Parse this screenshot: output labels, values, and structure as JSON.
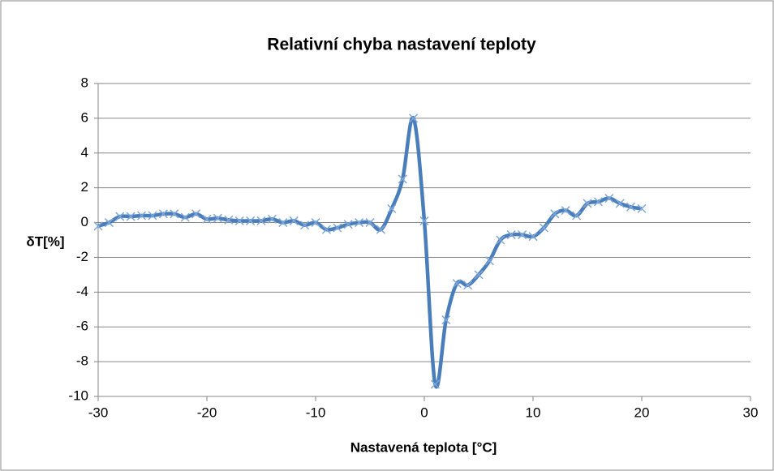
{
  "chart_data": {
    "type": "line",
    "title": "Relativní chyba nastavení teploty",
    "xlabel": "Nastavená teplota [°C]",
    "ylabel": "δT[%]",
    "x": [
      -30,
      -29,
      -28,
      -27,
      -26,
      -25,
      -24,
      -23,
      -22,
      -21,
      -20,
      -19,
      -18,
      -17,
      -16,
      -15,
      -14,
      -13,
      -12,
      -11,
      -10,
      -9,
      -8,
      -7,
      -6,
      -5,
      -4,
      -3,
      -2,
      -1,
      0,
      1,
      2,
      3,
      4,
      5,
      6,
      7,
      8,
      9,
      10,
      11,
      12,
      13,
      14,
      15,
      16,
      17,
      18,
      19,
      20
    ],
    "series": [
      {
        "color": "#4a7ebb",
        "values": [
          -0.2,
          0.0,
          0.35,
          0.35,
          0.4,
          0.4,
          0.5,
          0.5,
          0.3,
          0.5,
          0.2,
          0.25,
          0.15,
          0.1,
          0.1,
          0.1,
          0.2,
          0.0,
          0.1,
          -0.15,
          0.0,
          -0.4,
          -0.3,
          -0.1,
          0.0,
          0.0,
          -0.4,
          0.8,
          2.5,
          6.0,
          0.1,
          -9.3,
          -5.6,
          -3.5,
          -3.6,
          -3.0,
          -2.2,
          -1.0,
          -0.7,
          -0.7,
          -0.8,
          -0.3,
          0.5,
          0.7,
          0.4,
          1.1,
          1.2,
          1.4,
          1.1,
          0.9,
          0.8
        ]
      }
    ],
    "xlim": [
      -30,
      30
    ],
    "xticks": [
      -30,
      -20,
      -10,
      0,
      10,
      20,
      30
    ],
    "ylim": [
      -10,
      8
    ],
    "yticks": [
      -10,
      -8,
      -6,
      -4,
      -2,
      0,
      2,
      4,
      6,
      8
    ],
    "grid": true
  }
}
